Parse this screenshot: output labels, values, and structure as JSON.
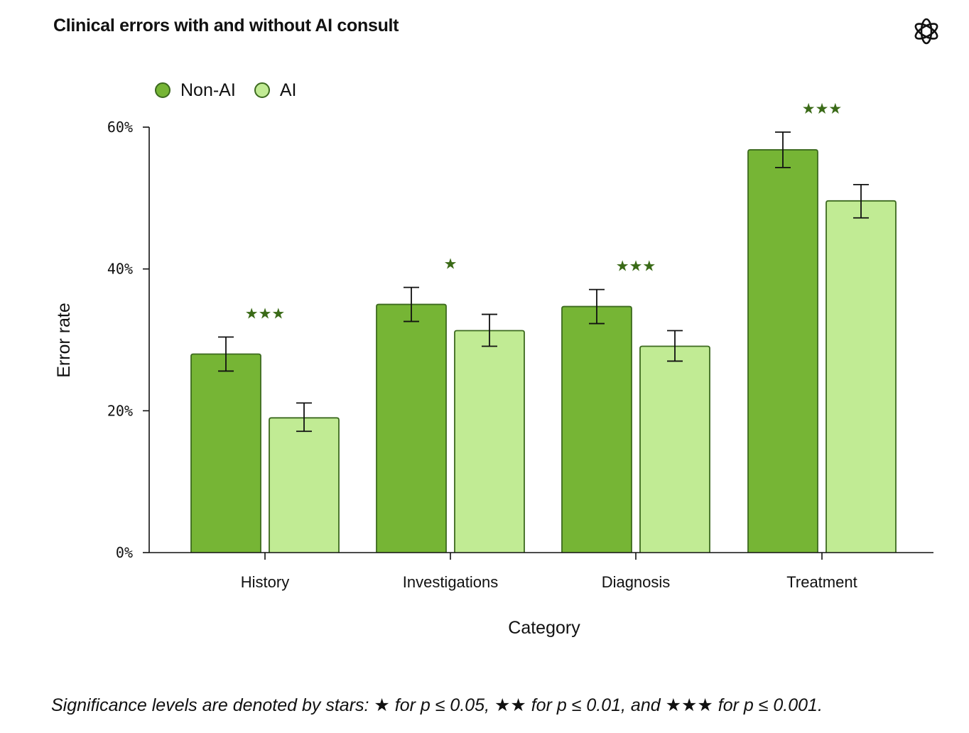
{
  "chart_data": {
    "type": "bar",
    "title": "Clinical errors with and without AI consult",
    "xlabel": "Category",
    "ylabel": "Error rate",
    "categories": [
      "History",
      "Investigations",
      "Diagnosis",
      "Treatment"
    ],
    "series": [
      {
        "name": "Non-AI",
        "values": [
          28.0,
          35.0,
          34.7,
          56.8
        ],
        "err_low": [
          25.6,
          32.6,
          32.3,
          54.3
        ],
        "err_high": [
          30.4,
          37.4,
          37.1,
          59.3
        ]
      },
      {
        "name": "AI",
        "values": [
          19.0,
          31.3,
          29.1,
          49.6
        ],
        "err_low": [
          17.1,
          29.1,
          27.0,
          47.2
        ],
        "err_high": [
          21.1,
          33.6,
          31.3,
          51.9
        ]
      }
    ],
    "significance": [
      "★★★",
      "★",
      "★★★",
      "★★★"
    ],
    "ylim": [
      0,
      60
    ],
    "yticks": [
      0,
      20,
      40,
      60
    ],
    "ytick_labels": [
      "0%",
      "20%",
      "40%",
      "60%"
    ],
    "legend_position": "top-left"
  },
  "colors": {
    "non_ai": "#76b535",
    "ai": "#c1eb94",
    "edge": "#3c6a1f",
    "significance": "#3a6a17"
  },
  "legend": {
    "non_ai_label": "Non-AI",
    "ai_label": "AI"
  },
  "footnote": "Significance levels are denoted by stars: ★ for p ≤ 0.05, ★★ for p ≤ 0.01, and ★★★ for p ≤ 0.001.",
  "logo_icon": "openai-logo-icon"
}
